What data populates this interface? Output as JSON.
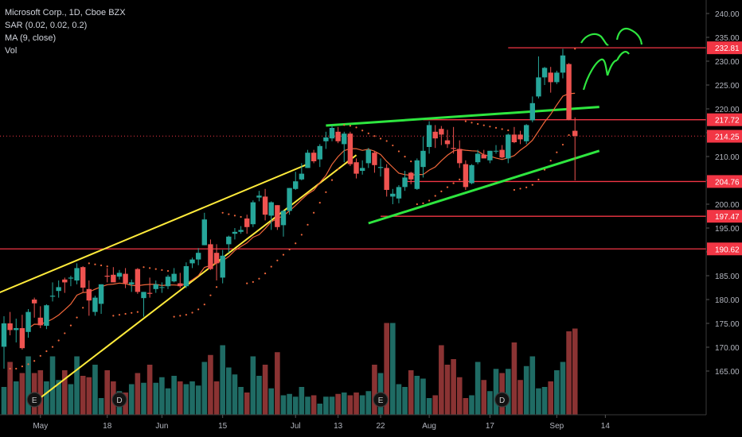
{
  "chart_data": {
    "type": "candlestick",
    "title": "Microsoft Corp., 1D, Cboe BZX",
    "indicators": [
      "SAR (0.02, 0.02, 0.2)",
      "MA (9, close)",
      "Vol"
    ],
    "y_axis": {
      "position": "right",
      "range": [
        160.5,
        241.5
      ],
      "ticks": [
        "165.00",
        "170.00",
        "175.00",
        "180.00",
        "185.00",
        "190.00",
        "195.00",
        "200.00",
        "205.00",
        "210.00",
        "215.00",
        "220.00",
        "225.00",
        "230.00",
        "235.00",
        "240.00"
      ]
    },
    "x_axis": {
      "ticks": [
        "May",
        "18",
        "Jun",
        "15",
        "Jul",
        "13",
        "22",
        "Aug",
        "17",
        "Sep",
        "14"
      ]
    },
    "price_labels": [
      {
        "label": "232.81",
        "value": 232.81,
        "color": "#f23645"
      },
      {
        "label": "217.72",
        "value": 217.72,
        "color": "#f23645"
      },
      {
        "label": "214.25",
        "value": 214.25,
        "color": "#f23645"
      },
      {
        "label": "204.76",
        "value": 204.76,
        "color": "#f23645"
      },
      {
        "label": "197.47",
        "value": 197.47,
        "color": "#f23645"
      },
      {
        "label": "190.62",
        "value": 190.62,
        "color": "#f23645"
      }
    ],
    "colors": {
      "up": "#26a69a",
      "down": "#ef5350",
      "up_volume": "#1f6b64",
      "down_volume": "#8a3333",
      "ma": "#f0663a",
      "sar": "#f0663a",
      "trend_yellow": "#ffeb3b",
      "trend_green": "#2ee63f",
      "level_red": "#f23645",
      "axis_text": "#b2b5be"
    },
    "earnings_markers": [
      {
        "label": "E",
        "date": "Apr 30"
      },
      {
        "label": "D",
        "date": "May 20"
      },
      {
        "label": "E",
        "date": "Jul 22"
      },
      {
        "label": "D",
        "date": "Aug 19"
      }
    ],
    "candles": [
      {
        "date": "Apr 23",
        "o": 170.1,
        "h": 176.5,
        "l": 165.5,
        "c": 175.0
      },
      {
        "date": "Apr 24",
        "o": 175.0,
        "h": 177.4,
        "l": 172.5,
        "c": 173.6
      },
      {
        "date": "Apr 27",
        "o": 173.6,
        "h": 176.0,
        "l": 171.0,
        "c": 174.0
      },
      {
        "date": "Apr 28",
        "o": 174.0,
        "h": 176.8,
        "l": 169.5,
        "c": 169.8
      },
      {
        "date": "Apr 29",
        "o": 173.2,
        "h": 178.0,
        "l": 172.0,
        "c": 177.4
      },
      {
        "date": "Apr 30",
        "o": 180.0,
        "h": 180.4,
        "l": 176.2,
        "c": 179.2
      },
      {
        "date": "May 1",
        "o": 176.2,
        "h": 178.6,
        "l": 174.0,
        "c": 174.6
      },
      {
        "date": "May 4",
        "o": 174.5,
        "h": 179.0,
        "l": 173.8,
        "c": 178.8
      },
      {
        "date": "May 5",
        "o": 180.6,
        "h": 183.6,
        "l": 179.6,
        "c": 180.8
      },
      {
        "date": "May 6",
        "o": 181.8,
        "h": 184.0,
        "l": 180.4,
        "c": 182.6
      },
      {
        "date": "May 7",
        "o": 184.2,
        "h": 184.6,
        "l": 181.4,
        "c": 183.6
      },
      {
        "date": "May 8",
        "o": 184.4,
        "h": 185.0,
        "l": 182.8,
        "c": 184.6
      },
      {
        "date": "May 11",
        "o": 184.0,
        "h": 187.6,
        "l": 183.2,
        "c": 186.6
      },
      {
        "date": "May 12",
        "o": 186.8,
        "h": 187.0,
        "l": 181.6,
        "c": 182.5
      },
      {
        "date": "May 13",
        "o": 182.2,
        "h": 184.0,
        "l": 176.6,
        "c": 179.8
      },
      {
        "date": "May 14",
        "o": 177.4,
        "h": 180.8,
        "l": 176.6,
        "c": 180.4
      },
      {
        "date": "May 15",
        "o": 179.1,
        "h": 183.2,
        "l": 177.0,
        "c": 183.2
      },
      {
        "date": "May 18",
        "o": 185.0,
        "h": 186.6,
        "l": 183.6,
        "c": 184.8
      },
      {
        "date": "May 19",
        "o": 185.2,
        "h": 186.8,
        "l": 183.8,
        "c": 183.6
      },
      {
        "date": "May 20",
        "o": 184.8,
        "h": 186.2,
        "l": 184.2,
        "c": 185.6
      },
      {
        "date": "May 21",
        "o": 185.4,
        "h": 186.6,
        "l": 182.4,
        "c": 183.4
      },
      {
        "date": "May 22",
        "o": 183.2,
        "h": 184.2,
        "l": 181.6,
        "c": 183.6
      },
      {
        "date": "May 26",
        "o": 186.4,
        "h": 186.6,
        "l": 181.2,
        "c": 181.6
      },
      {
        "date": "May 27",
        "o": 180.3,
        "h": 181.6,
        "l": 176.4,
        "c": 181.6
      },
      {
        "date": "May 28",
        "o": 181.4,
        "h": 184.6,
        "l": 180.4,
        "c": 181.2
      },
      {
        "date": "May 29",
        "o": 182.2,
        "h": 184.0,
        "l": 181.4,
        "c": 183.2
      },
      {
        "date": "Jun 1",
        "o": 182.6,
        "h": 183.6,
        "l": 181.4,
        "c": 182.6
      },
      {
        "date": "Jun 2",
        "o": 182.8,
        "h": 185.2,
        "l": 182.2,
        "c": 184.8
      },
      {
        "date": "Jun 3",
        "o": 183.8,
        "h": 186.6,
        "l": 183.6,
        "c": 185.4
      },
      {
        "date": "Jun 4",
        "o": 183.4,
        "h": 185.6,
        "l": 182.4,
        "c": 182.8
      },
      {
        "date": "Jun 5",
        "o": 182.8,
        "h": 187.8,
        "l": 182.4,
        "c": 187.0
      },
      {
        "date": "Jun 8",
        "o": 187.6,
        "h": 188.8,
        "l": 186.6,
        "c": 188.4
      },
      {
        "date": "Jun 9",
        "o": 188.4,
        "h": 190.8,
        "l": 187.2,
        "c": 189.8
      },
      {
        "date": "Jun 10",
        "o": 191.4,
        "h": 198.2,
        "l": 191.4,
        "c": 196.8
      },
      {
        "date": "Jun 11",
        "o": 191.6,
        "h": 192.6,
        "l": 186.2,
        "c": 186.4
      },
      {
        "date": "Jun 12",
        "o": 189.8,
        "h": 191.6,
        "l": 184.0,
        "c": 187.6
      },
      {
        "date": "Jun 15",
        "o": 184.6,
        "h": 190.4,
        "l": 183.4,
        "c": 189.2
      },
      {
        "date": "Jun 16",
        "o": 191.6,
        "h": 193.4,
        "l": 189.8,
        "c": 193.2
      },
      {
        "date": "Jun 17",
        "o": 193.8,
        "h": 195.0,
        "l": 192.6,
        "c": 194.2
      },
      {
        "date": "Jun 18",
        "o": 194.2,
        "h": 195.4,
        "l": 193.8,
        "c": 194.6
      },
      {
        "date": "Jun 19",
        "o": 197.0,
        "h": 197.8,
        "l": 193.8,
        "c": 195.2
      },
      {
        "date": "Jun 22",
        "o": 195.8,
        "h": 200.8,
        "l": 195.2,
        "c": 200.4
      },
      {
        "date": "Jun 23",
        "o": 201.4,
        "h": 202.8,
        "l": 200.6,
        "c": 201.8
      },
      {
        "date": "Jun 24",
        "o": 201.6,
        "h": 203.2,
        "l": 196.6,
        "c": 197.8
      },
      {
        "date": "Jun 25",
        "o": 197.6,
        "h": 200.6,
        "l": 194.6,
        "c": 200.4
      },
      {
        "date": "Jun 26",
        "o": 199.8,
        "h": 199.8,
        "l": 194.6,
        "c": 195.2
      },
      {
        "date": "Jun 29",
        "o": 195.6,
        "h": 198.8,
        "l": 193.2,
        "c": 198.6
      },
      {
        "date": "Jun 30",
        "o": 198.6,
        "h": 203.4,
        "l": 197.8,
        "c": 203.4
      },
      {
        "date": "Jul 1",
        "o": 203.2,
        "h": 206.8,
        "l": 203.0,
        "c": 204.8
      },
      {
        "date": "Jul 2",
        "o": 205.2,
        "h": 208.6,
        "l": 205.0,
        "c": 206.4
      },
      {
        "date": "Jul 6",
        "o": 207.6,
        "h": 211.4,
        "l": 207.6,
        "c": 210.8
      },
      {
        "date": "Jul 7",
        "o": 210.8,
        "h": 211.4,
        "l": 208.6,
        "c": 209.0
      },
      {
        "date": "Jul 8",
        "o": 209.4,
        "h": 212.6,
        "l": 207.8,
        "c": 212.2
      },
      {
        "date": "Jul 9",
        "o": 213.2,
        "h": 215.2,
        "l": 211.6,
        "c": 214.0
      },
      {
        "date": "Jul 10",
        "o": 213.8,
        "h": 216.6,
        "l": 213.2,
        "c": 216.0
      },
      {
        "date": "Jul 13",
        "o": 215.2,
        "h": 216.2,
        "l": 212.8,
        "c": 213.2
      },
      {
        "date": "Jul 14",
        "o": 212.6,
        "h": 215.2,
        "l": 208.8,
        "c": 214.8
      },
      {
        "date": "Jul 15",
        "o": 214.8,
        "h": 215.2,
        "l": 208.0,
        "c": 208.4
      },
      {
        "date": "Jul 16",
        "o": 208.8,
        "h": 209.6,
        "l": 205.4,
        "c": 206.4
      },
      {
        "date": "Jul 17",
        "o": 207.0,
        "h": 209.2,
        "l": 206.2,
        "c": 207.6
      },
      {
        "date": "Jul 20",
        "o": 208.6,
        "h": 211.8,
        "l": 207.6,
        "c": 211.4
      },
      {
        "date": "Jul 21",
        "o": 210.8,
        "h": 211.2,
        "l": 206.6,
        "c": 208.2
      },
      {
        "date": "Jul 22",
        "o": 207.6,
        "h": 209.6,
        "l": 205.8,
        "c": 207.8
      },
      {
        "date": "Jul 23",
        "o": 207.6,
        "h": 208.4,
        "l": 201.6,
        "c": 203.0
      },
      {
        "date": "Jul 24",
        "o": 201.6,
        "h": 203.2,
        "l": 200.0,
        "c": 202.2
      },
      {
        "date": "Jul 27",
        "o": 201.2,
        "h": 204.0,
        "l": 200.2,
        "c": 203.6
      },
      {
        "date": "Jul 28",
        "o": 203.6,
        "h": 207.0,
        "l": 202.8,
        "c": 205.6
      },
      {
        "date": "Jul 29",
        "o": 206.6,
        "h": 206.8,
        "l": 204.2,
        "c": 205.2
      },
      {
        "date": "Jul 30",
        "o": 203.2,
        "h": 209.6,
        "l": 203.0,
        "c": 209.2
      },
      {
        "date": "Jul 31",
        "o": 207.8,
        "h": 214.2,
        "l": 205.6,
        "c": 211.2
      },
      {
        "date": "Aug 3",
        "o": 212.0,
        "h": 217.4,
        "l": 210.6,
        "c": 216.6
      },
      {
        "date": "Aug 4",
        "o": 215.2,
        "h": 216.6,
        "l": 211.8,
        "c": 213.8
      },
      {
        "date": "Aug 5",
        "o": 215.8,
        "h": 216.4,
        "l": 212.4,
        "c": 214.6
      },
      {
        "date": "Aug 6",
        "o": 213.4,
        "h": 215.6,
        "l": 211.8,
        "c": 212.6
      },
      {
        "date": "Aug 7",
        "o": 211.8,
        "h": 216.2,
        "l": 210.6,
        "c": 211.6
      },
      {
        "date": "Aug 10",
        "o": 211.6,
        "h": 213.4,
        "l": 207.6,
        "c": 208.6
      },
      {
        "date": "Aug 11",
        "o": 208.4,
        "h": 209.2,
        "l": 203.0,
        "c": 203.6
      },
      {
        "date": "Aug 12",
        "o": 204.4,
        "h": 208.4,
        "l": 204.2,
        "c": 208.2
      },
      {
        "date": "Aug 13",
        "o": 208.8,
        "h": 211.4,
        "l": 208.4,
        "c": 210.6
      },
      {
        "date": "Aug 14",
        "o": 210.4,
        "h": 211.4,
        "l": 209.8,
        "c": 209.6
      },
      {
        "date": "Aug 17",
        "o": 209.2,
        "h": 211.2,
        "l": 208.6,
        "c": 211.2
      },
      {
        "date": "Aug 18",
        "o": 211.2,
        "h": 212.4,
        "l": 210.6,
        "c": 211.2
      },
      {
        "date": "Aug 19",
        "o": 211.4,
        "h": 212.4,
        "l": 209.6,
        "c": 209.8
      },
      {
        "date": "Aug 20",
        "o": 209.6,
        "h": 214.8,
        "l": 208.6,
        "c": 214.6
      },
      {
        "date": "Aug 21",
        "o": 214.6,
        "h": 216.2,
        "l": 212.8,
        "c": 213.0
      },
      {
        "date": "Aug 24",
        "o": 214.6,
        "h": 215.4,
        "l": 212.6,
        "c": 213.6
      },
      {
        "date": "Aug 25",
        "o": 213.2,
        "h": 216.8,
        "l": 212.6,
        "c": 216.6
      },
      {
        "date": "Aug 26",
        "o": 217.6,
        "h": 222.6,
        "l": 217.2,
        "c": 221.2
      },
      {
        "date": "Aug 27",
        "o": 222.6,
        "h": 231.0,
        "l": 222.2,
        "c": 226.6
      },
      {
        "date": "Aug 28",
        "o": 226.6,
        "h": 228.8,
        "l": 225.0,
        "c": 228.6
      },
      {
        "date": "Aug 31",
        "o": 227.6,
        "h": 228.8,
        "l": 223.4,
        "c": 225.6
      },
      {
        "date": "Sep 1",
        "o": 225.6,
        "h": 228.0,
        "l": 225.2,
        "c": 227.6
      },
      {
        "date": "Sep 2",
        "o": 227.6,
        "h": 232.6,
        "l": 226.4,
        "c": 231.2
      },
      {
        "date": "Sep 3",
        "o": 229.4,
        "h": 229.6,
        "l": 217.6,
        "c": 217.7
      },
      {
        "date": "Sep 4",
        "o": 215.4,
        "h": 218.2,
        "l": 205.0,
        "c": 214.3
      }
    ],
    "volume_heights": [
      0.2,
      0.38,
      0.24,
      0.3,
      0.42,
      0.3,
      0.32,
      0.24,
      0.42,
      0.25,
      0.32,
      0.22,
      0.42,
      0.28,
      0.27,
      0.36,
      0.12,
      0.32,
      0.24,
      0.17,
      0.16,
      0.22,
      0.3,
      0.23,
      0.36,
      0.23,
      0.27,
      0.19,
      0.28,
      0.24,
      0.22,
      0.24,
      0.21,
      0.38,
      0.43,
      0.24,
      0.5,
      0.34,
      0.29,
      0.2,
      0.16,
      0.42,
      0.28,
      0.36,
      0.19,
      0.45,
      0.14,
      0.15,
      0.13,
      0.2,
      0.13,
      0.14,
      0.08,
      0.13,
      0.13,
      0.15,
      0.16,
      0.14,
      0.16,
      0.14,
      0.17,
      0.36,
      0.3,
      0.66,
      0.66,
      0.22,
      0.2,
      0.32,
      0.28,
      0.26,
      0.12,
      0.14,
      0.5,
      0.36,
      0.4,
      0.27,
      0.12,
      0.14,
      0.38,
      0.25,
      0.17,
      0.33,
      0.3,
      0.33,
      0.52,
      0.25,
      0.35,
      0.42,
      0.19,
      0.2,
      0.24,
      0.32,
      0.38,
      0.6,
      0.62
    ],
    "overlays": {
      "yellow_channel_upper": [
        [
          "Apr 21",
          180.8
        ],
        [
          "Jul 6",
          208.4
        ]
      ],
      "yellow_channel_lower": [
        [
          "May 1",
          159.4
        ],
        [
          "Jul 16",
          210.3
        ]
      ],
      "green_channel_upper": [
        [
          "Jul 9",
          216.5
        ],
        [
          "Sep 11",
          220.4
        ]
      ],
      "green_channel_lower": [
        [
          "Jul 20",
          196.0
        ],
        [
          "Sep 11",
          211.2
        ]
      ],
      "levels": [
        {
          "value": 232.81,
          "from": "Aug 20"
        },
        {
          "value": 217.72,
          "from": "Jul 31"
        },
        {
          "value": 204.76,
          "from": "Jul 28"
        },
        {
          "value": 197.47,
          "from": "Jul 22"
        },
        {
          "value": 190.62,
          "from": "Apr 21"
        }
      ]
    }
  }
}
